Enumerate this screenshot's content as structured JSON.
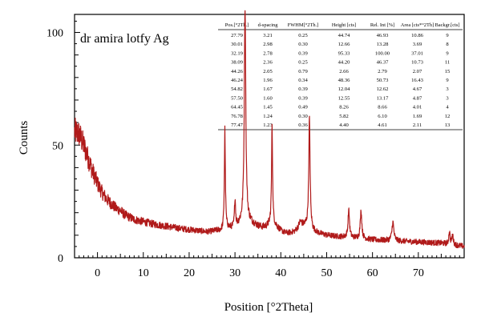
{
  "chart_data": {
    "type": "line",
    "title": "dr amira lotfy Ag",
    "xlabel": "Position [°2Theta]",
    "ylabel": "Counts",
    "xlim": [
      -5,
      80
    ],
    "ylim": [
      0,
      108
    ],
    "x_ticks": [
      0,
      10,
      20,
      30,
      40,
      50,
      60,
      70
    ],
    "y_ticks": [
      0,
      50,
      100
    ],
    "grid": false,
    "line_color": "#b01a1a",
    "background": [
      [
        -5,
        56
      ],
      [
        -4,
        55
      ],
      [
        -3,
        50
      ],
      [
        -2,
        44
      ],
      [
        -1,
        38
      ],
      [
        0,
        33
      ],
      [
        1,
        29
      ],
      [
        2,
        26
      ],
      [
        3,
        24
      ],
      [
        4,
        22
      ],
      [
        5,
        21
      ],
      [
        6,
        19
      ],
      [
        8,
        17
      ],
      [
        10,
        16
      ],
      [
        12,
        15
      ],
      [
        15,
        14
      ],
      [
        18,
        13
      ],
      [
        20,
        12.5
      ],
      [
        22,
        12
      ],
      [
        24,
        11.5
      ],
      [
        26,
        12
      ],
      [
        27,
        12
      ],
      [
        28,
        13
      ],
      [
        29,
        13
      ],
      [
        30,
        13
      ],
      [
        31,
        15
      ],
      [
        32,
        16
      ],
      [
        33,
        16
      ],
      [
        34,
        15
      ],
      [
        35,
        14
      ],
      [
        36,
        13.5
      ],
      [
        37,
        14
      ],
      [
        38,
        16
      ],
      [
        39,
        14
      ],
      [
        40,
        12
      ],
      [
        41,
        11
      ],
      [
        42,
        11
      ],
      [
        43,
        11.5
      ],
      [
        44,
        13
      ],
      [
        45,
        14
      ],
      [
        46,
        14
      ],
      [
        47,
        12
      ],
      [
        48,
        11
      ],
      [
        50,
        10
      ],
      [
        52,
        9.5
      ],
      [
        55,
        9
      ],
      [
        58,
        8.5
      ],
      [
        60,
        8
      ],
      [
        65,
        7.5
      ],
      [
        70,
        7
      ],
      [
        75,
        6.5
      ],
      [
        80,
        5
      ]
    ],
    "peaks": [
      {
        "pos": 27.79,
        "height": 44.74,
        "fwhm": 0.25
      },
      {
        "pos": 30.01,
        "height": 12.66,
        "fwhm": 0.3
      },
      {
        "pos": 32.19,
        "height": 95.33,
        "fwhm": 0.39
      },
      {
        "pos": 38.09,
        "height": 44.2,
        "fwhm": 0.25
      },
      {
        "pos": 44.26,
        "height": 2.66,
        "fwhm": 0.79
      },
      {
        "pos": 46.24,
        "height": 48.36,
        "fwhm": 0.34
      },
      {
        "pos": 54.82,
        "height": 12.04,
        "fwhm": 0.39
      },
      {
        "pos": 57.5,
        "height": 12.55,
        "fwhm": 0.39
      },
      {
        "pos": 64.45,
        "height": 8.26,
        "fwhm": 0.49
      },
      {
        "pos": 76.78,
        "height": 5.82,
        "fwhm": 0.3
      },
      {
        "pos": 77.47,
        "height": 4.4,
        "fwhm": 0.36
      }
    ]
  },
  "peak_table": {
    "columns": [
      "Pos.[°2Th.]",
      "d-spacing",
      "FWHM[°2Th.]",
      "Height [cts]",
      "Rel. Int [%]",
      "Area [cts*°2Th]",
      "Backgr.[cts]"
    ],
    "rows": [
      [
        "27.79",
        "3.21",
        "0.25",
        "44.74",
        "46.93",
        "10.86",
        "9"
      ],
      [
        "30.01",
        "2.98",
        "0.30",
        "12.66",
        "13.28",
        "3.69",
        "8"
      ],
      [
        "32.19",
        "2.78",
        "0.39",
        "95.33",
        "100.00",
        "37.01",
        "9"
      ],
      [
        "38.09",
        "2.36",
        "0.25",
        "44.20",
        "46.37",
        "10.73",
        "11"
      ],
      [
        "44.26",
        "2.05",
        "0.79",
        "2.66",
        "2.79",
        "2.07",
        "15"
      ],
      [
        "46.24",
        "1.96",
        "0.34",
        "48.36",
        "50.73",
        "16.43",
        "9"
      ],
      [
        "54.82",
        "1.67",
        "0.39",
        "12.04",
        "12.62",
        "4.67",
        "3"
      ],
      [
        "57.50",
        "1.60",
        "0.39",
        "12.55",
        "13.17",
        "4.87",
        "3"
      ],
      [
        "64.45",
        "1.45",
        "0.49",
        "8.26",
        "8.66",
        "4.01",
        "4"
      ],
      [
        "76.78",
        "1.24",
        "0.30",
        "5.82",
        "6.10",
        "1.69",
        "12"
      ],
      [
        "77.47",
        "1.23",
        "0.36",
        "4.40",
        "4.61",
        "2.11",
        "13"
      ]
    ]
  }
}
